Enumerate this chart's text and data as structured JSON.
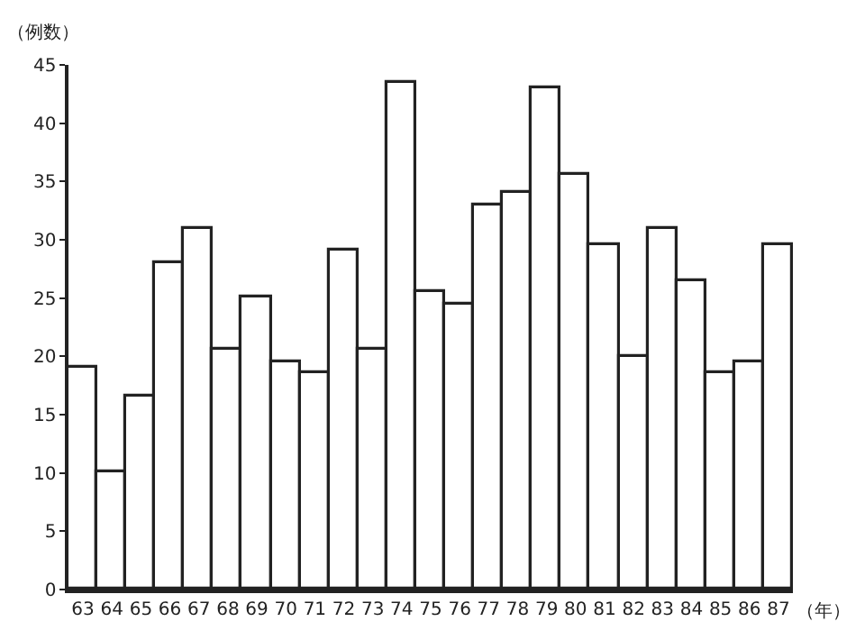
{
  "chart_data": {
    "type": "bar",
    "xlabel": "（年）",
    "ylabel": "（例数）",
    "categories": [
      "63",
      "64",
      "65",
      "66",
      "67",
      "68",
      "69",
      "70",
      "71",
      "72",
      "73",
      "74",
      "75",
      "76",
      "77",
      "78",
      "79",
      "80",
      "81",
      "82",
      "83",
      "84",
      "85",
      "86",
      "87"
    ],
    "values": [
      19,
      10,
      16.5,
      28,
      31,
      20.5,
      25,
      19.5,
      18.5,
      29,
      20.5,
      43.5,
      25.5,
      24.5,
      33,
      34,
      43,
      35.5,
      29.5,
      20,
      31,
      26.5,
      18.5,
      19.5,
      29.5
    ],
    "color": "#ffffff",
    "ylim": [
      0,
      45
    ],
    "yticks": [
      0,
      5,
      10,
      15,
      20,
      25,
      30,
      35,
      40,
      45
    ],
    "grid": false
  }
}
